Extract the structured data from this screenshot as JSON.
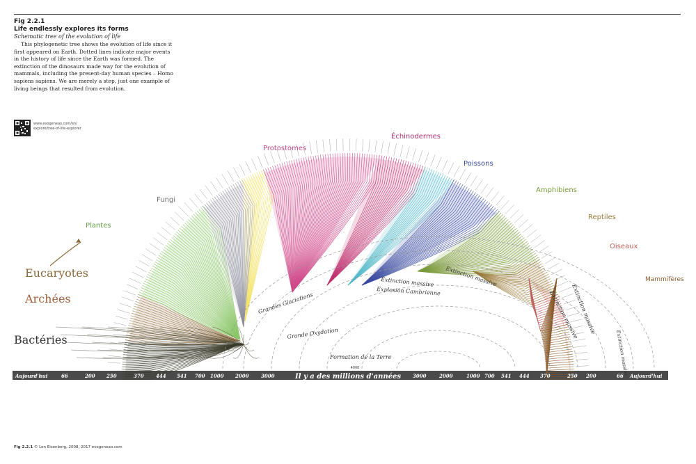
{
  "figure": {
    "label": "Fig 2.2.1",
    "title": "Life endlessly explores its forms",
    "subtitle": "Schematic tree of the evolution of life",
    "caption": "This phylogenetic tree shows the evolution of life since it first appeared on Earth. Dotted lines indicate major events in the history of life since the Earth was formed. The extinction of the dinosaurs made way for the evolution of mammals, including the present-day human species – Homo sapiens sapiens. We are merely a step, just one example of living beings that resulted from evolution.",
    "url_line1": "www.evogeneao.com/en/",
    "url_line2": "explore/tree-of-life-explorer",
    "footer_label": "Fig 2.2.1",
    "footer_credit": "© Len Eisenberg, 2008, 2017 evogeneao.com"
  },
  "domains": {
    "eucaryotes": "Eucaryotes",
    "archees": "Archées",
    "bacteries": "Bactéries"
  },
  "groups": {
    "plantes": "Plantes",
    "fungi": "Fungi",
    "protostomes": "Protostomes",
    "echinodermes": "Échinodermes",
    "poissons": "Poissons",
    "amphibiens": "Amphibiens",
    "reptiles": "Reptiles",
    "oiseaux": "Oiseaux",
    "mammiferes": "Mammifères"
  },
  "events": {
    "grandes_glaciations": "Grandes Glaciations",
    "grande_oxydation": "Grande Oxydation",
    "formation_terre": "Formation de la Terre",
    "explosion_cambrienne": "Explosion Cambrienne",
    "extinction_1": "Extinction massive",
    "extinction_2": "Extinction massive",
    "extinction_3": "Extinction massive",
    "extinction_4": "Extinction massive",
    "extinction_5": "Extinction massive"
  },
  "axis": {
    "title": "Il y a des millions d'années",
    "center_value": "4000",
    "left_labels": [
      "Aujourd'hui",
      "66",
      "200",
      "250",
      "370",
      "444",
      "541",
      "700",
      "1000",
      "2000",
      "3000"
    ],
    "right_labels": [
      "3000",
      "2000",
      "1000",
      "700",
      "541",
      "444",
      "370",
      "250",
      "200",
      "66",
      "Aujourd'hui"
    ]
  },
  "colors": {
    "bacteries": "#3a3a2a",
    "archees": "#9a7a50",
    "plantes": "#8cc76a",
    "fungi": "#8e8e9e",
    "yellow_clade": "#f2e05a",
    "protostomes": "#d04a8a",
    "echinodermes": "#c03070",
    "poissons": "#3a4aa0",
    "teal_clade": "#50b8c8",
    "amphibiens": "#7a9a3a",
    "reptiles": "#9a7a3a",
    "oiseaux": "#c0605a",
    "mammiferes": "#8a5a2a",
    "axis_bar": "#4a4a4a"
  }
}
